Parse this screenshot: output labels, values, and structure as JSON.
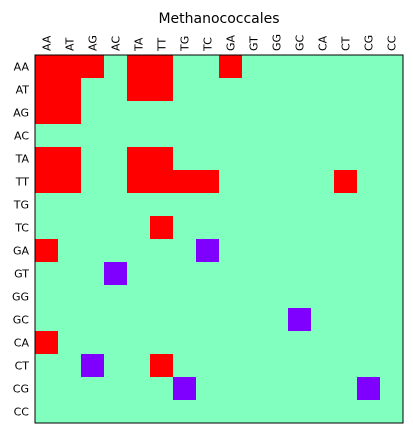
{
  "chart_data": {
    "type": "heatmap",
    "title": "Methanococcales",
    "x_labels": [
      "AA",
      "AT",
      "AG",
      "AC",
      "TA",
      "TT",
      "TG",
      "TC",
      "GA",
      "GT",
      "GG",
      "GC",
      "CA",
      "CT",
      "CG",
      "CC"
    ],
    "y_labels": [
      "AA",
      "AT",
      "AG",
      "AC",
      "TA",
      "TT",
      "TG",
      "TC",
      "GA",
      "GT",
      "GG",
      "GC",
      "CA",
      "CT",
      "CG",
      "CC"
    ],
    "value_colors": {
      "0": "#80ffbf",
      "1": "#ff0000",
      "2": "#8000ff"
    },
    "matrix": [
      [
        1,
        1,
        1,
        0,
        1,
        1,
        0,
        0,
        1,
        0,
        0,
        0,
        0,
        0,
        0,
        0
      ],
      [
        1,
        1,
        0,
        0,
        1,
        1,
        0,
        0,
        0,
        0,
        0,
        0,
        0,
        0,
        0,
        0
      ],
      [
        1,
        1,
        0,
        0,
        0,
        0,
        0,
        0,
        0,
        0,
        0,
        0,
        0,
        0,
        0,
        0
      ],
      [
        0,
        0,
        0,
        0,
        0,
        0,
        0,
        0,
        0,
        0,
        0,
        0,
        0,
        0,
        0,
        0
      ],
      [
        1,
        1,
        0,
        0,
        1,
        1,
        0,
        0,
        0,
        0,
        0,
        0,
        0,
        0,
        0,
        0
      ],
      [
        1,
        1,
        0,
        0,
        1,
        1,
        1,
        1,
        0,
        0,
        0,
        0,
        0,
        1,
        0,
        0
      ],
      [
        0,
        0,
        0,
        0,
        0,
        0,
        0,
        0,
        0,
        0,
        0,
        0,
        0,
        0,
        0,
        0
      ],
      [
        0,
        0,
        0,
        0,
        0,
        1,
        0,
        0,
        0,
        0,
        0,
        0,
        0,
        0,
        0,
        0
      ],
      [
        1,
        0,
        0,
        0,
        0,
        0,
        0,
        2,
        0,
        0,
        0,
        0,
        0,
        0,
        0,
        0
      ],
      [
        0,
        0,
        0,
        2,
        0,
        0,
        0,
        0,
        0,
        0,
        0,
        0,
        0,
        0,
        0,
        0
      ],
      [
        0,
        0,
        0,
        0,
        0,
        0,
        0,
        0,
        0,
        0,
        0,
        0,
        0,
        0,
        0,
        0
      ],
      [
        0,
        0,
        0,
        0,
        0,
        0,
        0,
        0,
        0,
        0,
        0,
        2,
        0,
        0,
        0,
        0
      ],
      [
        1,
        0,
        0,
        0,
        0,
        0,
        0,
        0,
        0,
        0,
        0,
        0,
        0,
        0,
        0,
        0
      ],
      [
        0,
        0,
        2,
        0,
        0,
        1,
        0,
        0,
        0,
        0,
        0,
        0,
        0,
        0,
        0,
        0
      ],
      [
        0,
        0,
        0,
        0,
        0,
        0,
        2,
        0,
        0,
        0,
        0,
        0,
        0,
        0,
        2,
        0
      ],
      [
        0,
        0,
        0,
        0,
        0,
        0,
        0,
        0,
        0,
        0,
        0,
        0,
        0,
        0,
        0,
        0
      ]
    ]
  }
}
